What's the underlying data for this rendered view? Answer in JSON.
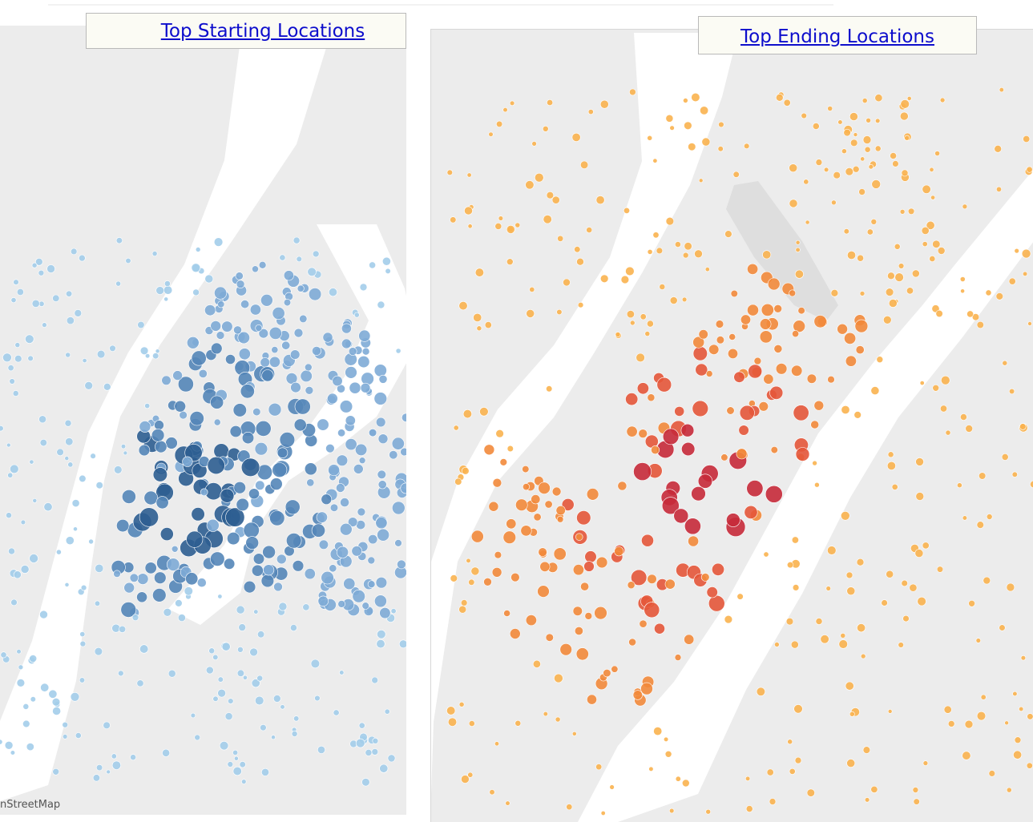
{
  "panels": {
    "start": {
      "title": "Top Starting Locations",
      "colors": {
        "light": "#a3cdea",
        "mid": "#7eabd6",
        "dark": "#5486b8",
        "darkest": "#2d5e91"
      }
    },
    "end": {
      "title": "Top Ending Locations",
      "colors": {
        "light": "#f9b24f",
        "mid": "#f28a3b",
        "dark": "#e4573a",
        "darkest": "#c62a3a"
      }
    }
  },
  "attribution": "nStreetMap",
  "map_colors": {
    "land": "#ececec",
    "water": "#ffffff",
    "parks": "#dedede"
  }
}
